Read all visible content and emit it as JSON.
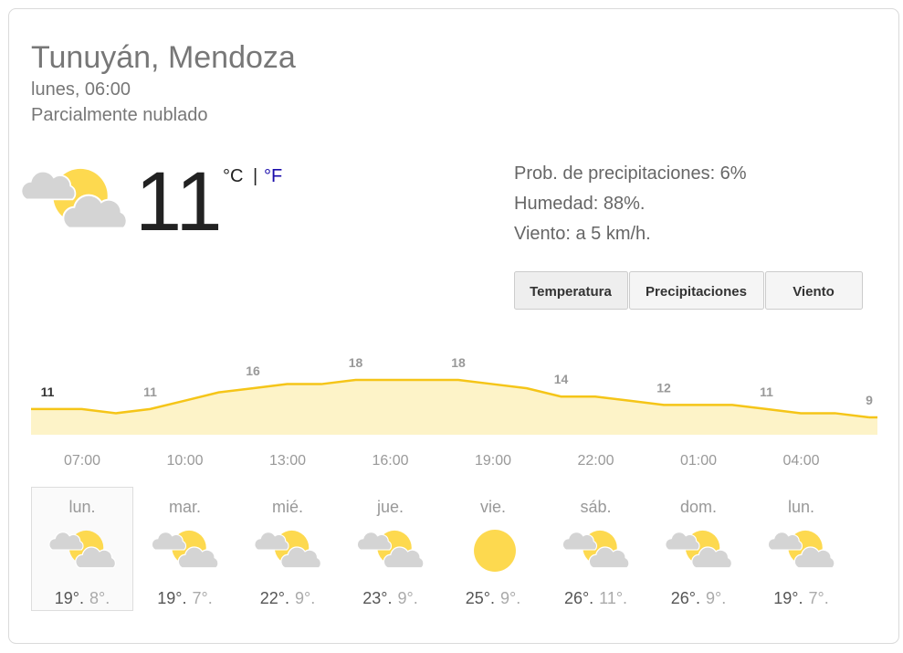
{
  "header": {
    "location": "Tunuyán, Mendoza",
    "time": "lunes, 06:00",
    "condition": "Parcialmente nublado"
  },
  "current": {
    "temp": "11",
    "unit_c": "°C",
    "separator": "|",
    "unit_f": "°F",
    "icon": "partly-cloudy"
  },
  "details": [
    "Prob. de precipitaciones: 6%",
    "Humedad: 88%.",
    "Viento: a 5 km/h."
  ],
  "tabs": [
    "Temperatura",
    "Precipitaciones",
    "Viento"
  ],
  "hourly": {
    "temps": [
      11,
      11,
      10,
      11,
      13,
      15,
      16,
      17,
      17,
      18,
      18,
      18,
      18,
      17,
      16,
      14,
      14,
      13,
      12,
      12,
      12,
      11,
      10,
      10,
      9
    ],
    "times": [
      "07:00",
      "10:00",
      "13:00",
      "16:00",
      "19:00",
      "22:00",
      "01:00",
      "04:00"
    ]
  },
  "days": [
    {
      "name": "lun.",
      "high": "19°.",
      "low": "8°.",
      "icon": "partly-cloudy"
    },
    {
      "name": "mar.",
      "high": "19°.",
      "low": "7°.",
      "icon": "partly-cloudy"
    },
    {
      "name": "mié.",
      "high": "22°.",
      "low": "9°.",
      "icon": "partly-cloudy"
    },
    {
      "name": "jue.",
      "high": "23°.",
      "low": "9°.",
      "icon": "partly-cloudy"
    },
    {
      "name": "vie.",
      "high": "25°.",
      "low": "9°.",
      "icon": "sunny"
    },
    {
      "name": "sáb.",
      "high": "26°.",
      "low": "11°.",
      "icon": "partly-cloudy"
    },
    {
      "name": "dom.",
      "high": "26°.",
      "low": "9°.",
      "icon": "partly-cloudy"
    },
    {
      "name": "lun.",
      "high": "19°.",
      "low": "7°.",
      "icon": "partly-cloudy"
    }
  ]
}
